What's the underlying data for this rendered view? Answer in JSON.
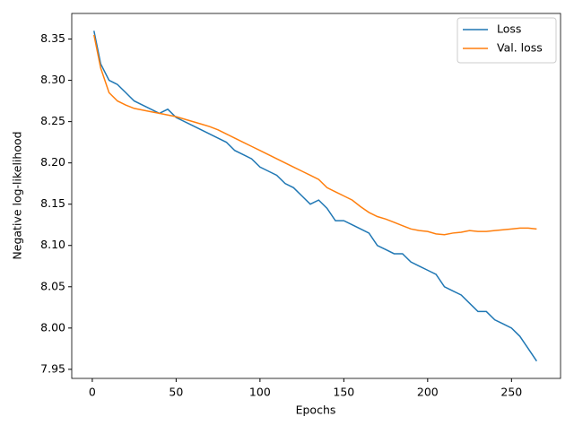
{
  "chart_data": {
    "type": "line",
    "xlabel": "Epochs",
    "ylabel": "Negative log-likelihood",
    "x": [
      1,
      5,
      10,
      15,
      20,
      25,
      30,
      35,
      40,
      45,
      50,
      55,
      60,
      65,
      70,
      75,
      80,
      85,
      90,
      95,
      100,
      105,
      110,
      115,
      120,
      125,
      130,
      135,
      140,
      145,
      150,
      155,
      160,
      165,
      170,
      175,
      180,
      185,
      190,
      195,
      200,
      205,
      210,
      215,
      220,
      225,
      230,
      235,
      240,
      245,
      250,
      255,
      260,
      265
    ],
    "series": [
      {
        "name": "Loss",
        "color": "#1f77b4",
        "values": [
          8.36,
          8.32,
          8.3,
          8.295,
          8.285,
          8.275,
          8.27,
          8.265,
          8.26,
          8.265,
          8.255,
          8.25,
          8.245,
          8.24,
          8.235,
          8.23,
          8.225,
          8.215,
          8.21,
          8.205,
          8.195,
          8.19,
          8.185,
          8.175,
          8.17,
          8.16,
          8.15,
          8.155,
          8.145,
          8.13,
          8.13,
          8.125,
          8.12,
          8.115,
          8.1,
          8.095,
          8.09,
          8.09,
          8.08,
          8.075,
          8.07,
          8.065,
          8.05,
          8.045,
          8.04,
          8.03,
          8.02,
          8.02,
          8.01,
          8.005,
          8.0,
          7.99,
          7.975,
          7.96
        ]
      },
      {
        "name": "Val. loss",
        "color": "#ff7f0e",
        "values": [
          8.355,
          8.315,
          8.285,
          8.275,
          8.27,
          8.266,
          8.264,
          8.262,
          8.26,
          8.258,
          8.256,
          8.253,
          8.25,
          8.247,
          8.244,
          8.24,
          8.235,
          8.23,
          8.225,
          8.22,
          8.215,
          8.21,
          8.205,
          8.2,
          8.195,
          8.19,
          8.185,
          8.18,
          8.17,
          8.165,
          8.16,
          8.155,
          8.147,
          8.14,
          8.135,
          8.132,
          8.128,
          8.124,
          8.12,
          8.118,
          8.117,
          8.114,
          8.113,
          8.115,
          8.116,
          8.118,
          8.117,
          8.117,
          8.118,
          8.119,
          8.12,
          8.121,
          8.121,
          8.12
        ]
      }
    ],
    "xlim": [
      -12.25,
      279.25
    ],
    "xticks": [
      0,
      50,
      100,
      150,
      200,
      250
    ],
    "ylim": [
      7.939,
      8.381
    ],
    "yticks": [
      7.95,
      {
        "value": 8.0,
        "label": "8.00"
      },
      8.05,
      {
        "value": 8.1,
        "label": "8.10"
      },
      8.15,
      {
        "value": 8.2,
        "label": "8.20"
      },
      8.25,
      {
        "value": 8.3,
        "label": "8.30"
      },
      8.35
    ],
    "legend": "upper right"
  }
}
